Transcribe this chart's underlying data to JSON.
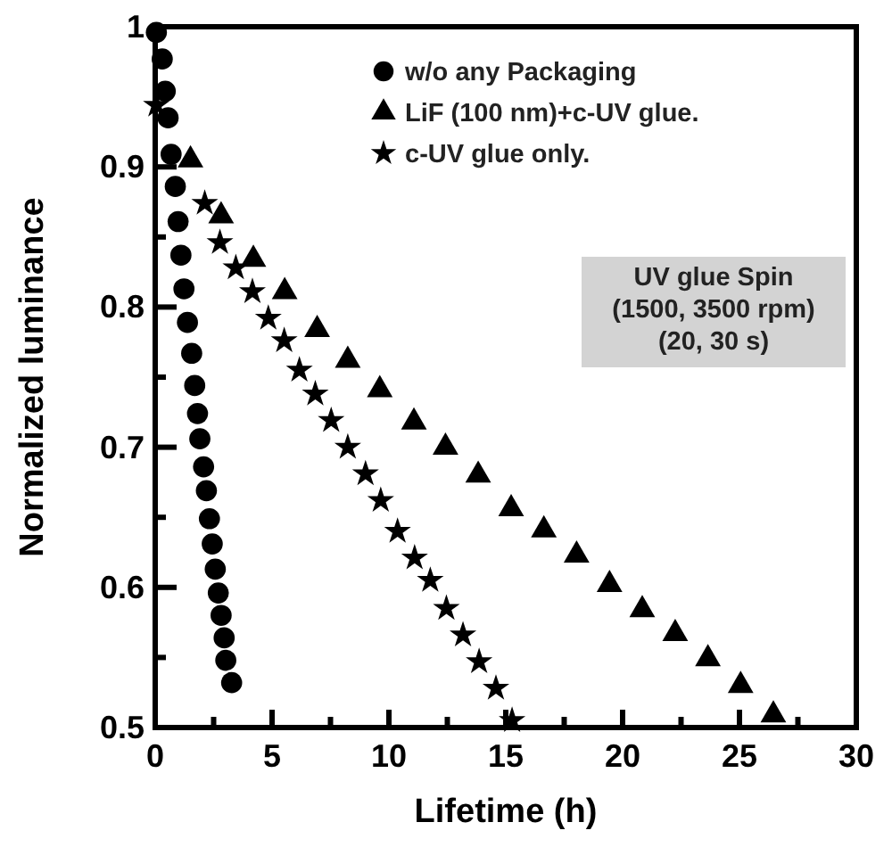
{
  "chart_data": {
    "type": "scatter",
    "xlabel": "Lifetime (h)",
    "ylabel": "Normalized luminance",
    "xlim": [
      0,
      30
    ],
    "ylim": [
      0.5,
      1
    ],
    "xticks": [
      0,
      {
        "value": 2.5,
        "label": null
      },
      5,
      {
        "value": 7.5,
        "label": null
      },
      10,
      {
        "value": 12.5,
        "label": null
      },
      15,
      {
        "value": 17.5,
        "label": null
      },
      20,
      {
        "value": 22.5,
        "label": null
      },
      25,
      {
        "value": 27.5,
        "label": null
      },
      30
    ],
    "yticks": [
      {
        "value": 0.5,
        "label": "0.5"
      },
      {
        "value": 0.55,
        "label": null
      },
      {
        "value": 0.6,
        "label": "0.6"
      },
      {
        "value": 0.65,
        "label": null
      },
      {
        "value": 0.7,
        "label": "0.7"
      },
      {
        "value": 0.75,
        "label": null
      },
      {
        "value": 0.8,
        "label": "0.8"
      },
      {
        "value": 0.85,
        "label": null
      },
      {
        "value": 0.9,
        "label": "0.9"
      },
      {
        "value": 0.95,
        "label": null
      },
      {
        "value": 1,
        "label": "1"
      }
    ],
    "legend": "top right",
    "annotations": [
      "UV glue Spin\n(1500, 3500 rpm)\n(20, 30 s)"
    ],
    "series": [
      {
        "name": "w/o any Packaging",
        "color": "#000000",
        "marker": "circle",
        "x": [
          0.05,
          0.3,
          0.43,
          0.55,
          0.68,
          0.86,
          0.98,
          1.1,
          1.23,
          1.38,
          1.56,
          1.69,
          1.81,
          1.91,
          2.07,
          2.19,
          2.32,
          2.44,
          2.57,
          2.7,
          2.82,
          2.95,
          3.02,
          3.27
        ],
        "values": [
          0.996,
          0.977,
          0.954,
          0.935,
          0.909,
          0.886,
          0.861,
          0.837,
          0.813,
          0.789,
          0.767,
          0.744,
          0.724,
          0.706,
          0.686,
          0.669,
          0.649,
          0.631,
          0.613,
          0.596,
          0.58,
          0.564,
          0.548,
          0.532
        ]
      },
      {
        "name": "LiF (100 nm)+c-UV glue.",
        "color": "#000000",
        "marker": "triangle",
        "x": [
          1.51,
          2.82,
          4.2,
          5.54,
          6.93,
          8.24,
          9.61,
          11.07,
          12.42,
          13.82,
          15.23,
          16.63,
          18.03,
          19.44,
          20.84,
          22.25,
          23.65,
          25.05,
          26.45
        ],
        "values": [
          0.905,
          0.865,
          0.834,
          0.811,
          0.784,
          0.762,
          0.741,
          0.718,
          0.7,
          0.68,
          0.656,
          0.641,
          0.623,
          0.602,
          0.584,
          0.567,
          0.549,
          0.53,
          0.509
        ]
      },
      {
        "name": "c-UV glue only.",
        "color": "#000000",
        "marker": "star",
        "x": [
          0.05,
          2.12,
          2.77,
          3.45,
          4.16,
          4.84,
          5.52,
          6.17,
          6.85,
          7.53,
          8.24,
          9.0,
          9.65,
          10.37,
          11.1,
          11.77,
          12.46,
          13.17,
          13.86,
          14.58,
          15.27
        ],
        "values": [
          0.944,
          0.874,
          0.846,
          0.828,
          0.811,
          0.792,
          0.776,
          0.755,
          0.738,
          0.719,
          0.7,
          0.681,
          0.662,
          0.64,
          0.621,
          0.605,
          0.585,
          0.566,
          0.547,
          0.528,
          0.505
        ]
      }
    ]
  }
}
